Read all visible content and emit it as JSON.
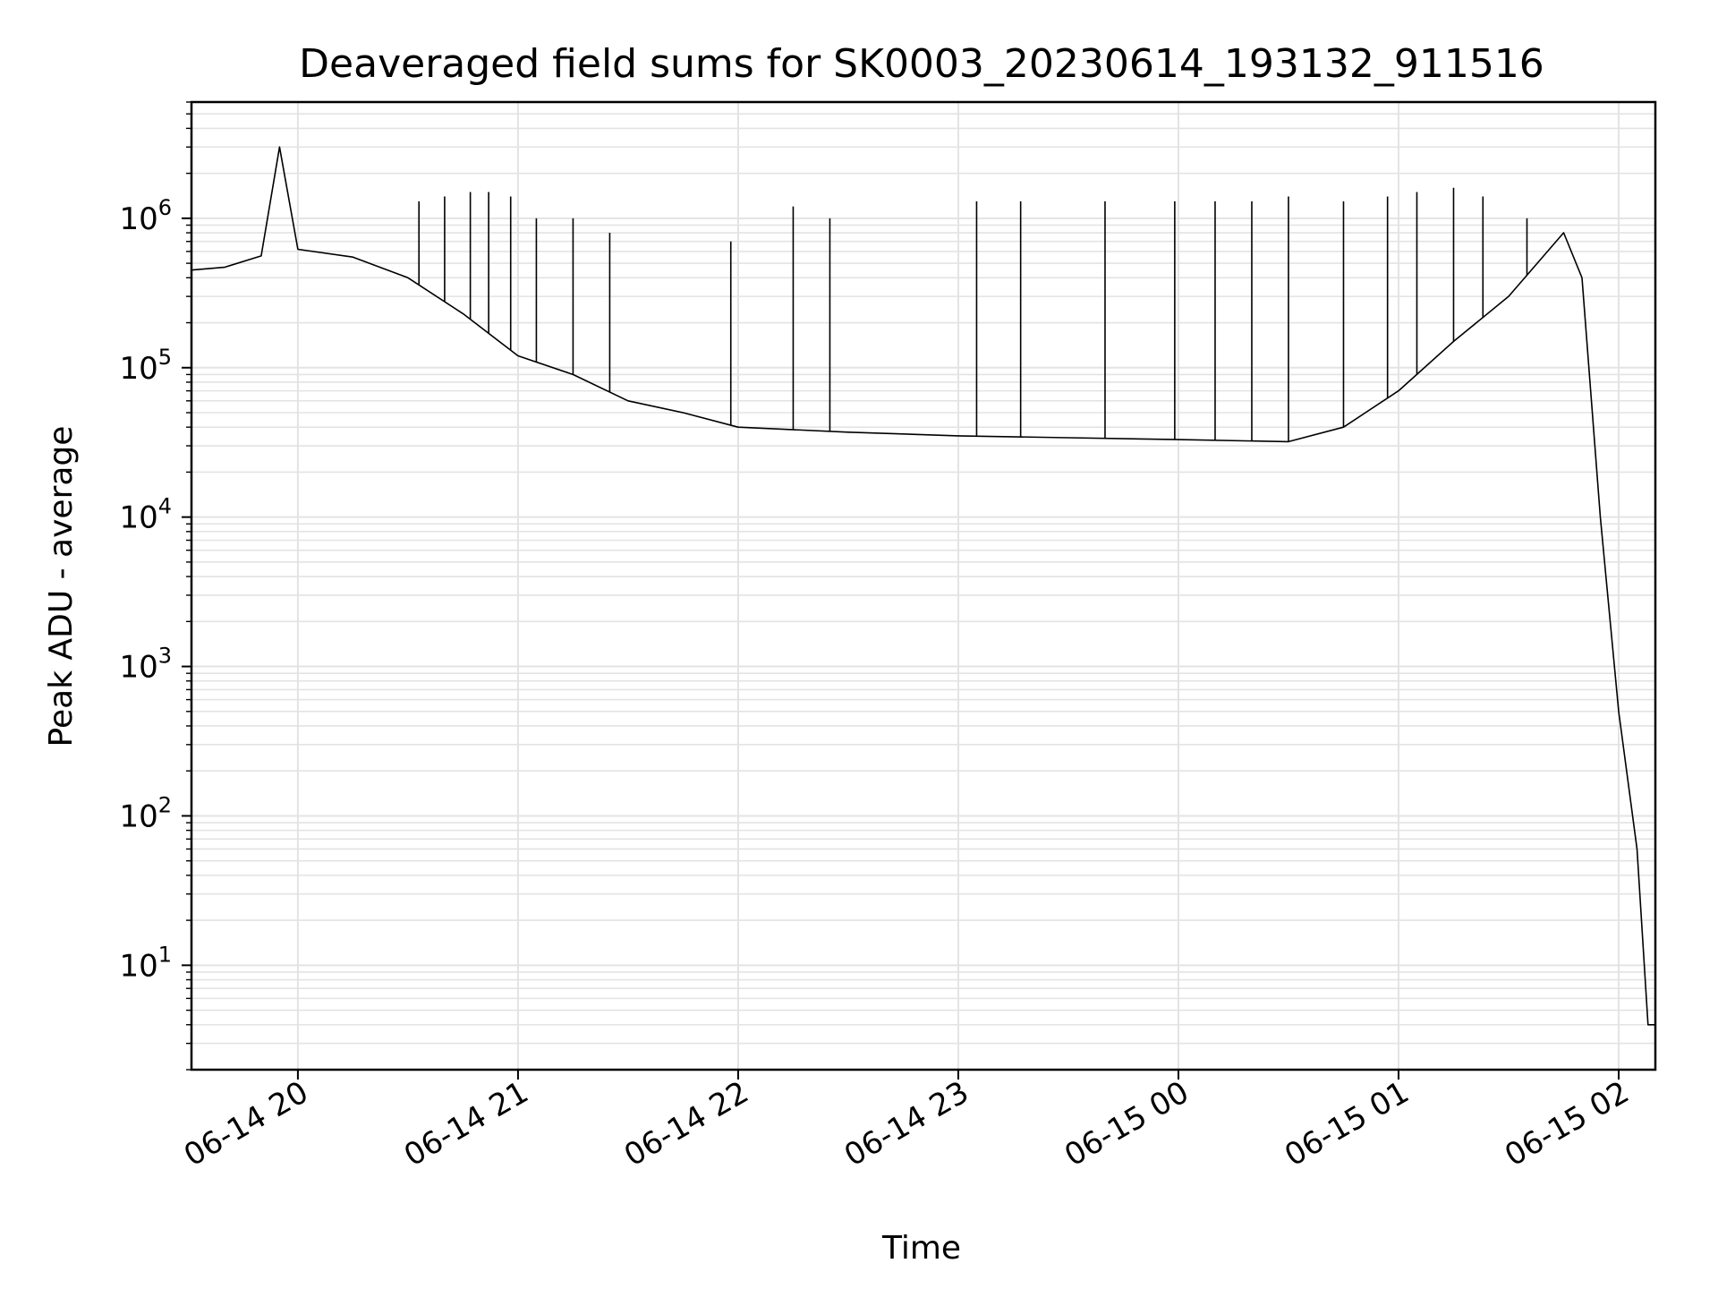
{
  "chart_data": {
    "type": "line",
    "title": "Deaveraged field sums for SK0003_20230614_193132_911516",
    "xlabel": "Time",
    "ylabel": "Peak ADU - average",
    "yscale": "log",
    "ylim": [
      2,
      6000000
    ],
    "xlim": [
      "06-14 19:31",
      "06-15 02:10"
    ],
    "grid": true,
    "line_color": "#000000",
    "grid_color": "#e3e3e3",
    "x_ticks": [
      {
        "t": "06-14 20:00",
        "label": "06-14 20"
      },
      {
        "t": "06-14 21:00",
        "label": "06-14 21"
      },
      {
        "t": "06-14 22:00",
        "label": "06-14 22"
      },
      {
        "t": "06-14 23:00",
        "label": "06-14 23"
      },
      {
        "t": "06-15 00:00",
        "label": "06-15 00"
      },
      {
        "t": "06-15 01:00",
        "label": "06-15 01"
      },
      {
        "t": "06-15 02:00",
        "label": "06-15 02"
      }
    ],
    "y_ticks": [
      {
        "value": 10,
        "base": "10",
        "exp": "1"
      },
      {
        "value": 100,
        "base": "10",
        "exp": "2"
      },
      {
        "value": 1000,
        "base": "10",
        "exp": "3"
      },
      {
        "value": 10000,
        "base": "10",
        "exp": "4"
      },
      {
        "value": 100000,
        "base": "10",
        "exp": "5"
      },
      {
        "value": 1000000,
        "base": "10",
        "exp": "6"
      }
    ],
    "series": [
      {
        "values": [
          {
            "t": "06-14 19:31",
            "y": 450000
          },
          {
            "t": "06-14 19:40",
            "y": 470000
          },
          {
            "t": "06-14 19:50",
            "y": 560000
          },
          {
            "t": "06-14 19:55",
            "y": 3000000
          },
          {
            "t": "06-14 20:00",
            "y": 620000
          },
          {
            "t": "06-14 20:15",
            "y": 550000
          },
          {
            "t": "06-14 20:30",
            "y": 400000
          },
          {
            "t": "06-14 20:45",
            "y": 230000
          },
          {
            "t": "06-14 21:00",
            "y": 120000
          },
          {
            "t": "06-14 21:15",
            "y": 90000
          },
          {
            "t": "06-14 21:30",
            "y": 60000
          },
          {
            "t": "06-14 21:45",
            "y": 50000
          },
          {
            "t": "06-14 22:00",
            "y": 40000
          },
          {
            "t": "06-14 22:30",
            "y": 37000
          },
          {
            "t": "06-14 23:00",
            "y": 35000
          },
          {
            "t": "06-14 23:30",
            "y": 34000
          },
          {
            "t": "06-15 00:00",
            "y": 33000
          },
          {
            "t": "06-15 00:30",
            "y": 32000
          },
          {
            "t": "06-15 00:45",
            "y": 40000
          },
          {
            "t": "06-15 01:00",
            "y": 70000
          },
          {
            "t": "06-15 01:15",
            "y": 150000
          },
          {
            "t": "06-15 01:30",
            "y": 300000
          },
          {
            "t": "06-15 01:45",
            "y": 800000
          },
          {
            "t": "06-15 01:50",
            "y": 400000
          },
          {
            "t": "06-15 01:55",
            "y": 10000
          },
          {
            "t": "06-15 02:00",
            "y": 500
          },
          {
            "t": "06-15 02:05",
            "y": 60
          },
          {
            "t": "06-15 02:08",
            "y": 4
          },
          {
            "t": "06-15 02:10",
            "y": 4
          }
        ],
        "spikes": [
          {
            "t": "06-14 20:33",
            "y": 1300000
          },
          {
            "t": "06-14 20:40",
            "y": 1400000
          },
          {
            "t": "06-14 20:47",
            "y": 1500000
          },
          {
            "t": "06-14 20:52",
            "y": 1500000
          },
          {
            "t": "06-14 20:58",
            "y": 1400000
          },
          {
            "t": "06-14 21:05",
            "y": 1000000
          },
          {
            "t": "06-14 21:15",
            "y": 1000000
          },
          {
            "t": "06-14 21:25",
            "y": 800000
          },
          {
            "t": "06-14 21:58",
            "y": 700000
          },
          {
            "t": "06-14 22:15",
            "y": 1200000
          },
          {
            "t": "06-14 22:25",
            "y": 1000000
          },
          {
            "t": "06-14 23:05",
            "y": 1300000
          },
          {
            "t": "06-14 23:17",
            "y": 1300000
          },
          {
            "t": "06-14 23:40",
            "y": 1300000
          },
          {
            "t": "06-14 23:59",
            "y": 1300000
          },
          {
            "t": "06-15 00:10",
            "y": 1300000
          },
          {
            "t": "06-15 00:20",
            "y": 1300000
          },
          {
            "t": "06-15 00:30",
            "y": 1400000
          },
          {
            "t": "06-15 00:45",
            "y": 1300000
          },
          {
            "t": "06-15 00:57",
            "y": 1400000
          },
          {
            "t": "06-15 01:05",
            "y": 1500000
          },
          {
            "t": "06-15 01:15",
            "y": 1600000
          },
          {
            "t": "06-15 01:23",
            "y": 1400000
          },
          {
            "t": "06-15 01:35",
            "y": 1000000
          }
        ]
      }
    ]
  }
}
